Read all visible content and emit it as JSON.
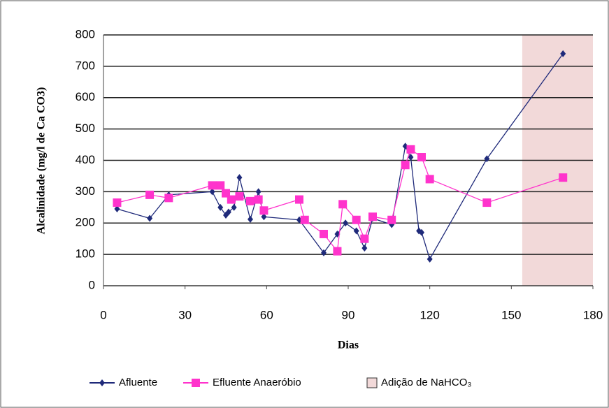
{
  "chart_data": {
    "type": "line",
    "x_label": "Dias",
    "y_label": "Alcalinidade (mg/l de Ca CO3)",
    "xlim": [
      0,
      180
    ],
    "xticks": [
      0,
      30,
      60,
      90,
      120,
      150,
      180
    ],
    "ylim": [
      0,
      800
    ],
    "yticks": [
      0,
      100,
      200,
      300,
      400,
      500,
      600,
      700,
      800
    ],
    "grid": true,
    "series": [
      {
        "name": "Afluente",
        "color": "#1f2a7a",
        "marker": "diamond",
        "x": [
          5,
          17,
          24,
          40,
          43,
          45,
          46,
          48,
          50,
          54,
          57,
          59,
          72,
          81,
          86,
          89,
          93,
          96,
          99,
          106,
          111,
          113,
          116,
          117,
          120,
          141,
          169
        ],
        "values": [
          245,
          215,
          290,
          300,
          250,
          225,
          235,
          250,
          345,
          212,
          300,
          220,
          210,
          105,
          165,
          200,
          175,
          120,
          215,
          195,
          445,
          410,
          175,
          170,
          85,
          405,
          740
        ]
      },
      {
        "name": "Efluente Anaeróbio",
        "color": "#ff33cc",
        "marker": "square",
        "x": [
          5,
          17,
          24,
          40,
          43,
          45,
          47,
          50,
          54,
          57,
          59,
          72,
          74,
          81,
          86,
          88,
          93,
          96,
          99,
          106,
          111,
          113,
          117,
          120,
          141,
          169
        ],
        "values": [
          265,
          290,
          280,
          320,
          320,
          295,
          275,
          285,
          270,
          275,
          240,
          275,
          210,
          165,
          110,
          260,
          210,
          150,
          220,
          210,
          385,
          435,
          410,
          340,
          265,
          345
        ]
      }
    ],
    "shade": {
      "name": "Adição de NaHCO₃",
      "xlim": [
        154,
        180
      ],
      "color": "#f2d9d9"
    }
  }
}
